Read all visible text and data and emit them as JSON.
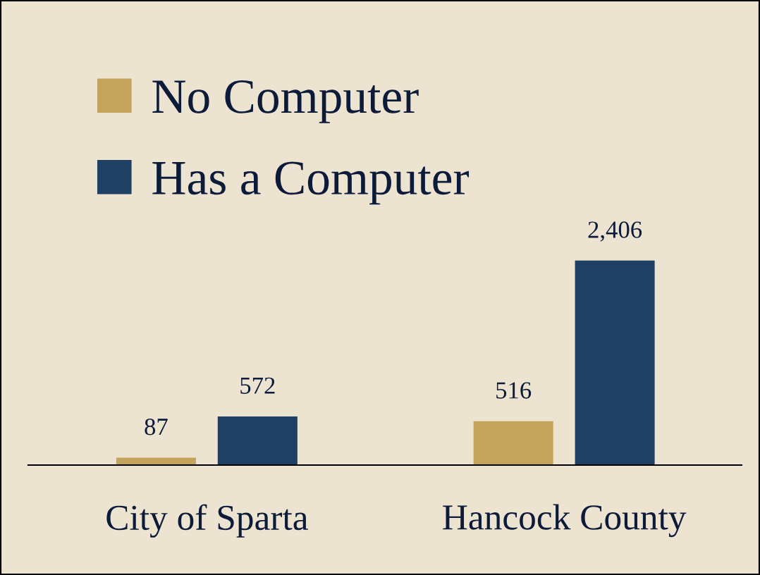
{
  "chart_data": {
    "type": "bar",
    "categories": [
      "City of Sparta",
      "Hancock County"
    ],
    "series": [
      {
        "name": "No Computer",
        "color": "#c4a35a",
        "values": [
          87,
          516
        ],
        "value_labels": [
          "87",
          "516"
        ]
      },
      {
        "name": "Has a Computer",
        "color": "#1f3f63",
        "values": [
          572,
          2406
        ],
        "value_labels": [
          "572",
          "2,406"
        ]
      }
    ],
    "legend": "top left",
    "grid": false,
    "tick_labels": "x"
  }
}
